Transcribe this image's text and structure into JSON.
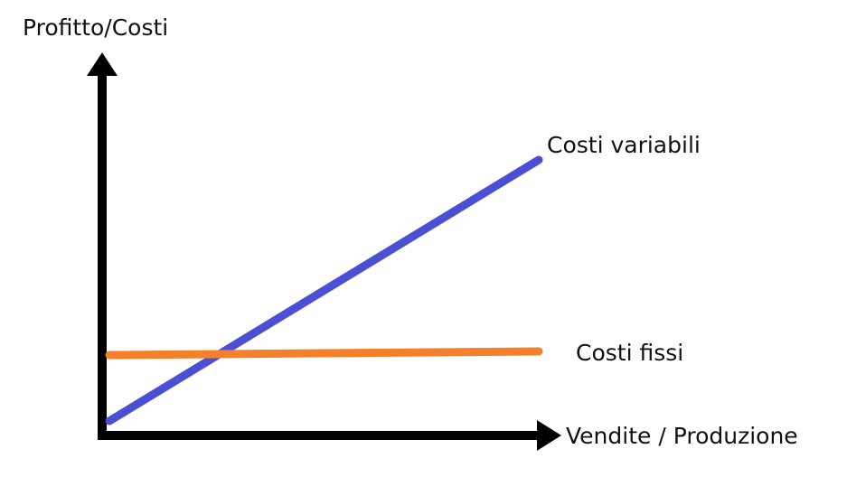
{
  "y_axis_label": "Profitto/Costi",
  "x_axis_label": "Vendite / Produzione",
  "lines": [
    {
      "label": "Costi variabili"
    },
    {
      "label": "Costi fissi"
    }
  ]
}
